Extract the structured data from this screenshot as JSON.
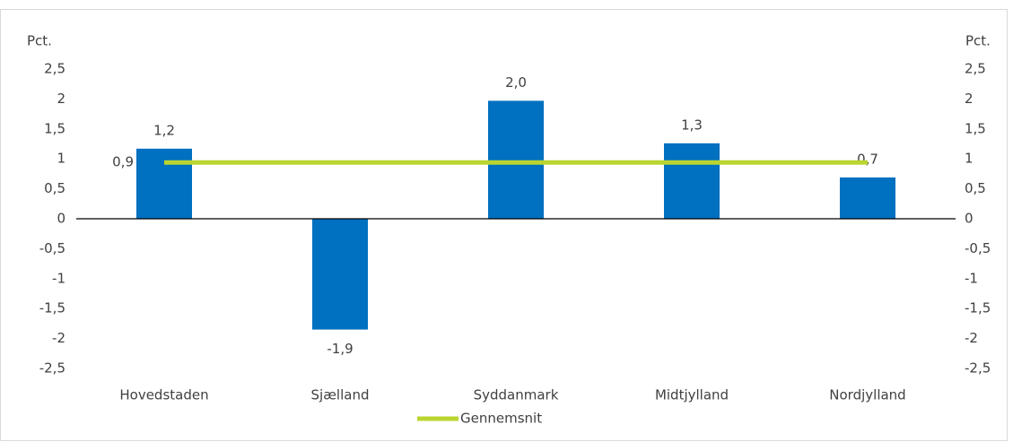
{
  "chart_data": {
    "type": "bar",
    "y_label": "Pct.",
    "y2_label": "Pct.",
    "categories": [
      "Hovedstaden",
      "Sjælland",
      "Syddanmark",
      "Midtjylland",
      "Nordjylland"
    ],
    "series": [
      {
        "name": "",
        "type": "bar",
        "color": "#0070c0",
        "values": [
          1.17,
          -1.85,
          1.97,
          1.26,
          0.69
        ],
        "value_labels": [
          "1,2",
          "-1,9",
          "2,0",
          "1,3",
          "0,7"
        ]
      },
      {
        "name": "Gennemsnit",
        "type": "line",
        "color": "#b9d530",
        "values": [
          0.94,
          0.94,
          0.94,
          0.94,
          0.94
        ],
        "value_labels": [
          "0,9",
          null,
          null,
          null,
          null
        ]
      }
    ],
    "ylim": [
      -2.5,
      2.5
    ],
    "yticks": [
      {
        "value": -2.5,
        "label": "-2,5"
      },
      -2,
      {
        "value": -1.5,
        "label": "-1,5"
      },
      -1,
      {
        "value": -0.5,
        "label": "-0,5"
      },
      0,
      {
        "value": 0.5,
        "label": "0,5"
      },
      1,
      {
        "value": 1.5,
        "label": "1,5"
      },
      2,
      {
        "value": 2.5,
        "label": "2,5"
      }
    ],
    "y2lim": [
      -2.5,
      2.5
    ],
    "y2ticks": [
      {
        "value": -2.5,
        "label": "-2,5"
      },
      -2,
      {
        "value": -1.5,
        "label": "-1,5"
      },
      -1,
      {
        "value": -0.5,
        "label": "-0,5"
      },
      0,
      {
        "value": 0.5,
        "label": "0,5"
      },
      1,
      {
        "value": 1.5,
        "label": "1,5"
      },
      2,
      {
        "value": 2.5,
        "label": "2,5"
      }
    ],
    "grid": false,
    "legend": "bottom"
  }
}
